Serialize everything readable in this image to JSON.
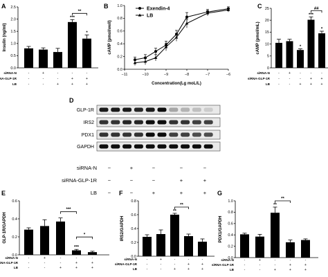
{
  "panels": {
    "A": "A",
    "B": "B",
    "C": "C",
    "D": "D",
    "E": "E",
    "F": "F",
    "G": "G"
  },
  "row_labels": {
    "siRNA-N": "siRNA-N",
    "siRNA-GLP-1R": "siRNA-GLP-1R",
    "LB": "LB"
  },
  "conditions": {
    "siRNA-N": [
      "-",
      "+",
      "-",
      "-",
      "-"
    ],
    "siRNA-GLP-1R": [
      "-",
      "-",
      "-",
      "+",
      "+"
    ],
    "LB": [
      "-",
      "-",
      "+",
      "+",
      "+"
    ]
  },
  "blot": {
    "proteins": [
      "GLP-1R",
      "IRS2",
      "PDX1",
      "GAPDH"
    ],
    "cond_labels": [
      "siRNA-N",
      "siRNA-GLP-1R",
      "LB"
    ],
    "cond_values": [
      [
        "−",
        "+",
        "−",
        "−",
        "−"
      ],
      [
        "−",
        "−",
        "−",
        "+",
        "+"
      ],
      [
        "−",
        "−",
        "+",
        "+",
        "+"
      ]
    ]
  },
  "chart_data": [
    {
      "panel": "A",
      "type": "bar",
      "ylabel": "Insulin (ng/ml)",
      "ylim": [
        0,
        2.5
      ],
      "yticks": [
        "0.0",
        "0.5",
        "1.0",
        "1.5",
        "2.0",
        "2.5"
      ],
      "values": [
        0.8,
        0.75,
        0.65,
        1.88,
        1.2
      ],
      "errors": [
        0.08,
        0.07,
        0.15,
        0.1,
        0.15
      ],
      "stars": [
        "",
        "",
        "",
        "***",
        "*"
      ],
      "brackets": [
        {
          "from": 3,
          "to": 4,
          "label": "**"
        }
      ]
    },
    {
      "panel": "B",
      "type": "line",
      "xlabel": "Concentration(Lg moL/L)",
      "ylabel": "cAMP (pmol/well)",
      "xlim": [
        -11,
        -6
      ],
      "ylim": [
        0,
        1.0
      ],
      "xticks": [
        "−11",
        "−10",
        "−9",
        "−8",
        "−7",
        "−6"
      ],
      "yticks": [
        "0.0",
        "0.2",
        "0.4",
        "0.6",
        "0.8",
        "1.0"
      ],
      "series": [
        {
          "name": "Exendin-4",
          "marker": "circle",
          "x": [
            -10.5,
            -10,
            -9.5,
            -9,
            -8.5,
            -8,
            -7,
            -6
          ],
          "y": [
            0.15,
            0.18,
            0.28,
            0.38,
            0.55,
            0.82,
            0.9,
            0.95
          ],
          "err": [
            0.04,
            0.05,
            0.05,
            0.06,
            0.06,
            0.07,
            0.04,
            0.03
          ]
        },
        {
          "name": "LB",
          "marker": "triangle",
          "x": [
            -10.5,
            -10,
            -9.5,
            -9,
            -8.5,
            -8,
            -7,
            -6
          ],
          "y": [
            0.1,
            0.12,
            0.18,
            0.35,
            0.5,
            0.72,
            0.88,
            0.93
          ],
          "err": [
            0.04,
            0.05,
            0.05,
            0.06,
            0.06,
            0.07,
            0.04,
            0.03
          ]
        }
      ]
    },
    {
      "panel": "C",
      "type": "bar",
      "ylabel": "cAMP (pmol/mL)",
      "ylim": [
        0,
        25
      ],
      "yticks": [
        "0",
        "5",
        "10",
        "15",
        "20",
        "25"
      ],
      "values": [
        10.5,
        11.2,
        7.5,
        20.2,
        14.5
      ],
      "errors": [
        1.5,
        0.8,
        0.5,
        1.2,
        0.9
      ],
      "stars": [
        "",
        "",
        "*",
        "***",
        "*"
      ],
      "brackets": [
        {
          "from": 3,
          "to": 4,
          "label": "##"
        }
      ]
    },
    {
      "panel": "E",
      "type": "bar",
      "ylabel": "GLP-1R/GAPDH",
      "ylim": [
        0,
        0.6
      ],
      "yticks": [
        "0.0",
        "0.2",
        "0.4",
        "0.6"
      ],
      "values": [
        0.28,
        0.32,
        0.37,
        0.05,
        0.03
      ],
      "errors": [
        0.02,
        0.07,
        0.04,
        0.01,
        0.01
      ],
      "stars": [
        "",
        "",
        "",
        "***",
        ""
      ],
      "brackets": [
        {
          "from": 2,
          "to": 3,
          "label": "***"
        },
        {
          "from": 3,
          "to": 4,
          "label": "*"
        }
      ]
    },
    {
      "panel": "F",
      "type": "bar",
      "ylabel": "IRS2/GAPDH",
      "ylim": [
        0,
        0.8
      ],
      "yticks": [
        "0.0",
        "0.2",
        "0.4",
        "0.6",
        "0.8"
      ],
      "values": [
        0.28,
        0.32,
        0.6,
        0.29,
        0.21
      ],
      "errors": [
        0.03,
        0.06,
        0.02,
        0.03,
        0.04
      ],
      "stars": [
        "",
        "",
        "**",
        "",
        ""
      ],
      "brackets": [
        {
          "from": 2,
          "to": 3,
          "label": "**"
        }
      ]
    },
    {
      "panel": "G",
      "type": "bar",
      "ylabel": "PDX1/GAPDH",
      "ylim": [
        0,
        1.0
      ],
      "yticks": [
        "0.0",
        "0.2",
        "0.4",
        "0.6",
        "0.8",
        "1.0"
      ],
      "values": [
        0.41,
        0.37,
        0.79,
        0.27,
        0.31
      ],
      "errors": [
        0.02,
        0.04,
        0.1,
        0.04,
        0.02
      ],
      "stars": [
        "",
        "",
        "**",
        "",
        ""
      ],
      "brackets": [
        {
          "from": 2,
          "to": 3,
          "label": "**"
        }
      ]
    }
  ]
}
